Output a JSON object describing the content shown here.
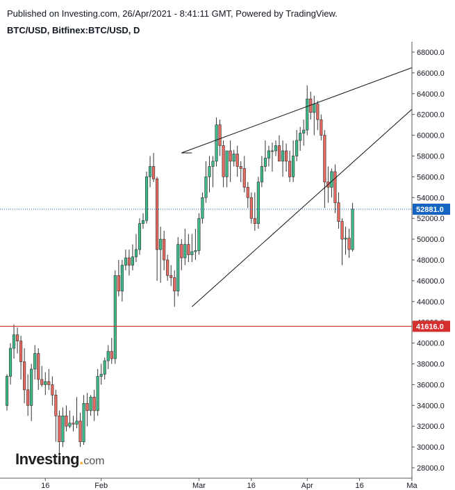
{
  "header": {
    "published": "Published on Investing.com, 26/Apr/2021 - 8:41:11 GMT, Powered by TradingView.",
    "symbol": "BTC/USD, Bitfinex:BTC/USD, D"
  },
  "logo": {
    "main": "Investing",
    "dot": ".",
    "suffix": "com"
  },
  "colors": {
    "up": "#26a69a",
    "up_fill": "#3dbb88",
    "down": "#e0594f",
    "down_fill": "#e86a60",
    "wick": "#333333",
    "support": "#d32f2f",
    "last_price": "#1565c0",
    "trendline": "#111111"
  },
  "chart_data": {
    "type": "candlestick",
    "ylim": [
      27000,
      69000
    ],
    "y_ticks": [
      "28000.0",
      "30000.0",
      "32000.0",
      "34000.0",
      "36000.0",
      "38000.0",
      "40000.0",
      "42000.0",
      "44000.0",
      "46000.0",
      "48000.0",
      "50000.0",
      "52000.0",
      "54000.0",
      "56000.0",
      "58000.0",
      "60000.0",
      "62000.0",
      "64000.0",
      "66000.0",
      "68000.0"
    ],
    "x_start": "2021-01-05",
    "x_end": "2021-05-01",
    "x_ticks": [
      {
        "date": "2021-01-16",
        "label": "16"
      },
      {
        "date": "2021-02-01",
        "label": "Feb"
      },
      {
        "date": "2021-03-01",
        "label": "Mar"
      },
      {
        "date": "2021-03-16",
        "label": "16"
      },
      {
        "date": "2021-04-01",
        "label": "Apr"
      },
      {
        "date": "2021-04-16",
        "label": "16"
      },
      {
        "date": "2021-05-01",
        "label": "Ma"
      }
    ],
    "first_date": "2021-01-05",
    "candles": [
      [
        34000,
        37000,
        33500,
        36800
      ],
      [
        36800,
        40000,
        36000,
        39500
      ],
      [
        39500,
        41800,
        38500,
        40800
      ],
      [
        40800,
        41500,
        39000,
        40200
      ],
      [
        40200,
        40700,
        36500,
        38200
      ],
      [
        38200,
        39500,
        34200,
        35500
      ],
      [
        35500,
        37000,
        33000,
        34000
      ],
      [
        34000,
        38000,
        32500,
        37500
      ],
      [
        37500,
        39800,
        36500,
        39000
      ],
      [
        39000,
        39500,
        35500,
        36500
      ],
      [
        36500,
        37800,
        35800,
        36000
      ],
      [
        36000,
        37200,
        35000,
        36300
      ],
      [
        36300,
        37500,
        35500,
        36000
      ],
      [
        36000,
        36800,
        34000,
        35000
      ],
      [
        35000,
        35500,
        30500,
        33000
      ],
      [
        33000,
        33500,
        29000,
        30500
      ],
      [
        30500,
        33800,
        30000,
        33000
      ],
      [
        33000,
        34000,
        31500,
        32000
      ],
      [
        32000,
        33500,
        31800,
        32300
      ],
      [
        32300,
        33000,
        31500,
        32200
      ],
      [
        32200,
        34800,
        31800,
        32500
      ],
      [
        32500,
        33300,
        30000,
        30500
      ],
      [
        30500,
        35000,
        30200,
        34200
      ],
      [
        34200,
        35200,
        32000,
        33500
      ],
      [
        33500,
        35000,
        33000,
        34800
      ],
      [
        34800,
        35500,
        32500,
        33500
      ],
      [
        33500,
        37500,
        33000,
        36800
      ],
      [
        36800,
        38000,
        36000,
        37000
      ],
      [
        37000,
        38600,
        36500,
        38300
      ],
      [
        38300,
        39800,
        37500,
        39200
      ],
      [
        39200,
        40500,
        38000,
        38500
      ],
      [
        38500,
        47000,
        38000,
        46500
      ],
      [
        46500,
        48000,
        44500,
        45000
      ],
      [
        45000,
        48000,
        44000,
        47500
      ],
      [
        47500,
        49000,
        47000,
        48200
      ],
      [
        48200,
        49000,
        46500,
        47500
      ],
      [
        47500,
        49500,
        47000,
        48300
      ],
      [
        48300,
        50500,
        47800,
        49000
      ],
      [
        49000,
        52000,
        48500,
        51500
      ],
      [
        51500,
        52500,
        51000,
        51800
      ],
      [
        51800,
        56500,
        51500,
        56000
      ],
      [
        56000,
        58000,
        55000,
        57000
      ],
      [
        57000,
        58300,
        55500,
        55800
      ],
      [
        55800,
        56000,
        46000,
        49000
      ],
      [
        49000,
        51200,
        45800,
        50000
      ],
      [
        50000,
        50800,
        47000,
        48000
      ],
      [
        48000,
        48500,
        46000,
        46500
      ],
      [
        46500,
        47500,
        45500,
        46300
      ],
      [
        46300,
        47000,
        43500,
        45000
      ],
      [
        45000,
        50200,
        44500,
        49500
      ],
      [
        49500,
        50000,
        47000,
        48200
      ],
      [
        48200,
        51000,
        47500,
        49500
      ],
      [
        49500,
        50500,
        47800,
        48500
      ],
      [
        48500,
        50500,
        47800,
        48800
      ],
      [
        48800,
        51000,
        48000,
        48900
      ],
      [
        48900,
        52500,
        48500,
        52000
      ],
      [
        52000,
        54500,
        51500,
        54000
      ],
      [
        54000,
        57500,
        53500,
        56000
      ],
      [
        56000,
        58000,
        54500,
        57000
      ],
      [
        57000,
        58000,
        55000,
        57500
      ],
      [
        57500,
        61700,
        57000,
        61000
      ],
      [
        61000,
        61500,
        58000,
        59000
      ],
      [
        59000,
        59500,
        55000,
        56000
      ],
      [
        56000,
        58500,
        55000,
        58500
      ],
      [
        58500,
        59500,
        55500,
        57500
      ],
      [
        57500,
        58600,
        57000,
        58200
      ],
      [
        58200,
        59000,
        56000,
        57000
      ],
      [
        57000,
        57500,
        55500,
        56800
      ],
      [
        56800,
        58000,
        54500,
        55000
      ],
      [
        55000,
        55500,
        53000,
        54000
      ],
      [
        54000,
        54500,
        51500,
        52000
      ],
      [
        52000,
        54500,
        50800,
        51500
      ],
      [
        51500,
        56000,
        51000,
        55500
      ],
      [
        55500,
        58000,
        55000,
        57000
      ],
      [
        57000,
        59500,
        56500,
        57800
      ],
      [
        57800,
        59000,
        57000,
        58500
      ],
      [
        58500,
        59300,
        56500,
        58500
      ],
      [
        58500,
        59500,
        58000,
        59000
      ],
      [
        59000,
        60000,
        57500,
        57500
      ],
      [
        57500,
        59500,
        56000,
        58500
      ],
      [
        58500,
        59200,
        56500,
        57500
      ],
      [
        57500,
        58500,
        55500,
        56000
      ],
      [
        56000,
        59500,
        55500,
        58000
      ],
      [
        58000,
        60500,
        57500,
        59500
      ],
      [
        59500,
        60800,
        58500,
        60200
      ],
      [
        60200,
        61500,
        59000,
        60500
      ],
      [
        60500,
        64800,
        60000,
        63500
      ],
      [
        63500,
        64200,
        61500,
        62200
      ],
      [
        62200,
        63800,
        60000,
        63000
      ],
      [
        63000,
        63300,
        60500,
        61500
      ],
      [
        61500,
        62000,
        59500,
        60000
      ],
      [
        60000,
        60500,
        53000,
        55500
      ],
      [
        55500,
        57000,
        53500,
        55000
      ],
      [
        55000,
        56800,
        54000,
        56500
      ],
      [
        56500,
        57200,
        52500,
        53500
      ],
      [
        53500,
        54500,
        51000,
        51700
      ],
      [
        51700,
        52000,
        47500,
        50000
      ],
      [
        50000,
        51200,
        48500,
        50100
      ],
      [
        50100,
        51000,
        48200,
        49000
      ],
      [
        49000,
        53500,
        48800,
        52900
      ]
    ],
    "support_level": 41616,
    "support_label": "41616.0",
    "last_price": 52881,
    "last_price_label": "52881.0",
    "trendlines": [
      {
        "from": [
          "2021-02-24",
          58300
        ],
        "to": [
          "2021-05-01",
          66500
        ]
      },
      {
        "from": [
          "2021-02-27",
          43500
        ],
        "to": [
          "2021-05-01",
          62500
        ]
      },
      {
        "from": [
          "2021-02-24",
          58300
        ],
        "to": [
          "2021-02-27",
          58300
        ]
      }
    ],
    "grid": false,
    "legend": "none"
  }
}
